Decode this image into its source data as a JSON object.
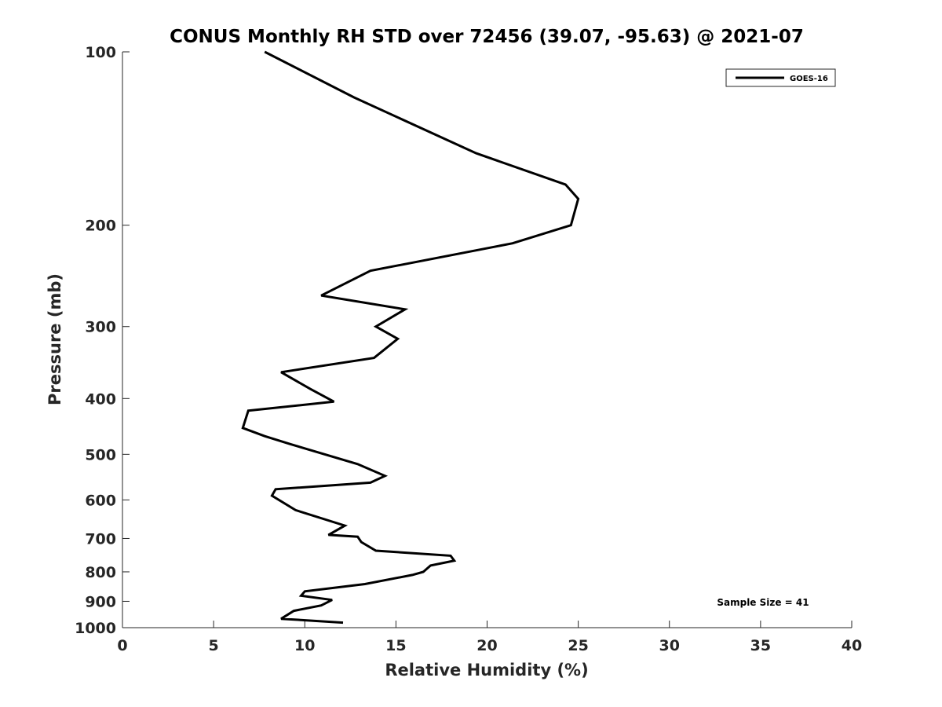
{
  "chart_data": {
    "type": "line",
    "title": "CONUS Monthly RH STD over 72456 (39.07, -95.63) @ 2021-07",
    "xlabel": "Relative Humidity (%)",
    "ylabel": "Pressure (mb)",
    "xlim": [
      0,
      40
    ],
    "ylim": [
      100,
      1000
    ],
    "y_scale": "log",
    "y_reversed": true,
    "x_ticks": [
      0,
      5,
      10,
      15,
      20,
      25,
      30,
      35,
      40
    ],
    "y_ticks": [
      100,
      200,
      300,
      400,
      500,
      600,
      700,
      800,
      900,
      1000
    ],
    "grid": false,
    "legend_position": "top-right",
    "annotation": "Sample Size = 41",
    "series": [
      {
        "name": "GOES-16",
        "color": "#000000",
        "x": [
          7.8,
          12.7,
          19.4,
          24.3,
          25.0,
          24.6,
          21.4,
          13.6,
          10.9,
          15.5,
          13.9,
          15.1,
          13.8,
          8.7,
          10.3,
          11.6,
          6.9,
          6.6,
          7.8,
          9.2,
          12.9,
          14.4,
          13.6,
          8.4,
          8.2,
          9.5,
          12.2,
          11.3,
          12.9,
          13.1,
          13.9,
          18.0,
          18.2,
          16.9,
          16.5,
          15.9,
          13.3,
          10.0,
          9.8,
          11.5,
          10.9,
          9.4,
          8.7,
          12.1
        ],
        "y": [
          100,
          120,
          150,
          170,
          180,
          200,
          215,
          240,
          265,
          280,
          300,
          315,
          340,
          360,
          385,
          405,
          420,
          450,
          465,
          480,
          520,
          545,
          560,
          575,
          590,
          625,
          665,
          690,
          695,
          710,
          735,
          750,
          765,
          780,
          800,
          810,
          840,
          865,
          880,
          895,
          915,
          935,
          965,
          980
        ]
      }
    ]
  }
}
